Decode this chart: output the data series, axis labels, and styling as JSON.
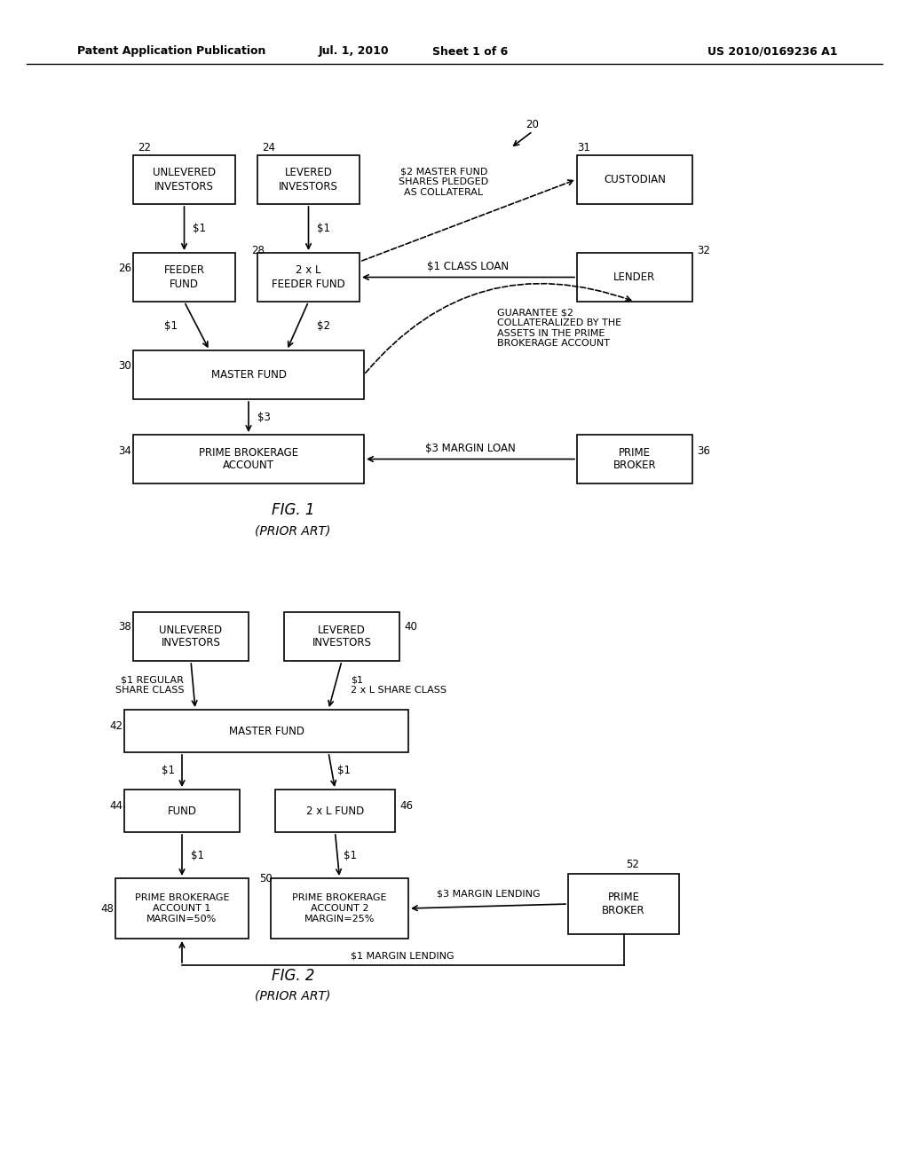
{
  "bg_color": "#ffffff",
  "header_text": "Patent Application Publication",
  "header_date": "Jul. 1, 2010",
  "header_sheet": "Sheet 1 of 6",
  "header_patent": "US 2010/0169236 A1"
}
